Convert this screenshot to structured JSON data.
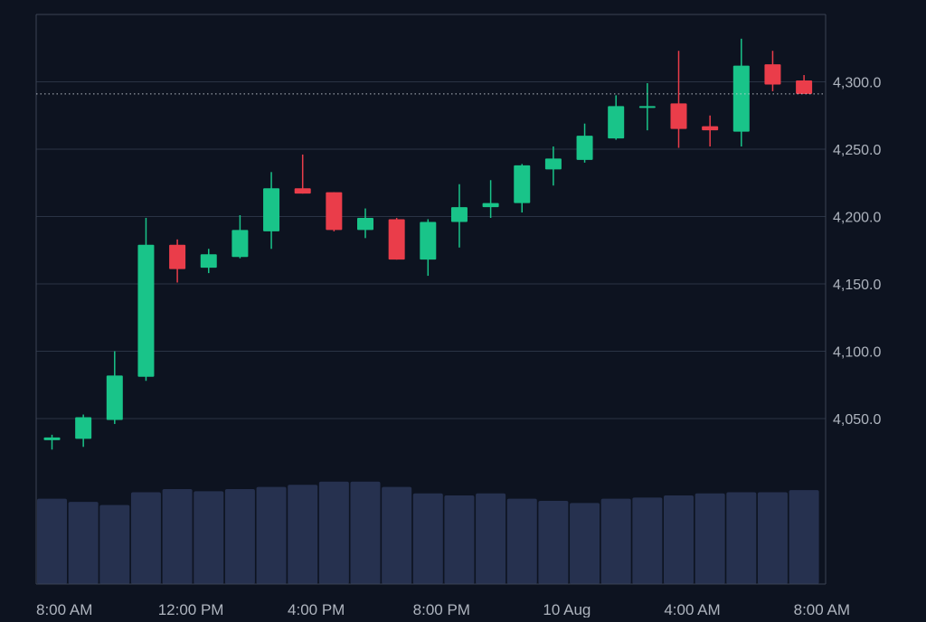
{
  "theme": {
    "background": "#0d1320",
    "grid": "#2a3344",
    "frame": "#3a4354",
    "up": "#19c489",
    "down": "#ea3d4a",
    "volume": "#26314f",
    "axis_text": "#aeb4be",
    "price_line": "#cfd4db"
  },
  "chart_data": {
    "type": "candlestick",
    "price_axis": {
      "position": "right",
      "ticks": [
        4050,
        4100,
        4150,
        4200,
        4250,
        4300
      ],
      "tick_labels": [
        "4,050.0",
        "4,100.0",
        "4,150.0",
        "4,200.0",
        "4,250.0",
        "4,300.0"
      ],
      "range": [
        4000,
        4350
      ]
    },
    "time_axis": {
      "labels": [
        "8:00 AM",
        "12:00 PM",
        "4:00 PM",
        "8:00 PM",
        "10 Aug",
        "4:00 AM",
        "8:00 AM"
      ],
      "label_candle_index": [
        0,
        4,
        8,
        12,
        16,
        20,
        24
      ]
    },
    "grid": true,
    "current_price_line": 4291,
    "candles": [
      {
        "o": 4034,
        "h": 4038,
        "l": 4027,
        "c": 4036
      },
      {
        "o": 4035,
        "h": 4053,
        "l": 4029,
        "c": 4051
      },
      {
        "o": 4049,
        "h": 4100,
        "l": 4046,
        "c": 4082
      },
      {
        "o": 4081,
        "h": 4199,
        "l": 4078,
        "c": 4179
      },
      {
        "o": 4179,
        "h": 4183,
        "l": 4151,
        "c": 4161
      },
      {
        "o": 4162,
        "h": 4176,
        "l": 4158,
        "c": 4172
      },
      {
        "o": 4170,
        "h": 4201,
        "l": 4169,
        "c": 4190
      },
      {
        "o": 4189,
        "h": 4233,
        "l": 4176,
        "c": 4221
      },
      {
        "o": 4221,
        "h": 4246,
        "l": 4217,
        "c": 4217
      },
      {
        "o": 4218,
        "h": 4218,
        "l": 4189,
        "c": 4190
      },
      {
        "o": 4190,
        "h": 4206,
        "l": 4184,
        "c": 4199
      },
      {
        "o": 4198,
        "h": 4199,
        "l": 4168,
        "c": 4168
      },
      {
        "o": 4168,
        "h": 4198,
        "l": 4156,
        "c": 4196
      },
      {
        "o": 4196,
        "h": 4224,
        "l": 4177,
        "c": 4207
      },
      {
        "o": 4207,
        "h": 4227,
        "l": 4199,
        "c": 4210
      },
      {
        "o": 4210,
        "h": 4239,
        "l": 4203,
        "c": 4238
      },
      {
        "o": 4235,
        "h": 4252,
        "l": 4223,
        "c": 4243
      },
      {
        "o": 4242,
        "h": 4269,
        "l": 4240,
        "c": 4260
      },
      {
        "o": 4258,
        "h": 4290,
        "l": 4257,
        "c": 4282
      },
      {
        "o": 4282,
        "h": 4299,
        "l": 4264,
        "c": 4282
      },
      {
        "o": 4284,
        "h": 4323,
        "l": 4251,
        "c": 4265
      },
      {
        "o": 4267,
        "h": 4275,
        "l": 4252,
        "c": 4264
      },
      {
        "o": 4263,
        "h": 4332,
        "l": 4252,
        "c": 4312
      },
      {
        "o": 4313,
        "h": 4323,
        "l": 4293,
        "c": 4298
      },
      {
        "o": 4301,
        "h": 4305,
        "l": 4291,
        "c": 4291
      }
    ],
    "volume": [
      0.8,
      0.77,
      0.74,
      0.86,
      0.89,
      0.87,
      0.89,
      0.91,
      0.93,
      0.96,
      0.96,
      0.91,
      0.85,
      0.83,
      0.85,
      0.8,
      0.78,
      0.76,
      0.8,
      0.81,
      0.83,
      0.85,
      0.86,
      0.86,
      0.88
    ]
  }
}
